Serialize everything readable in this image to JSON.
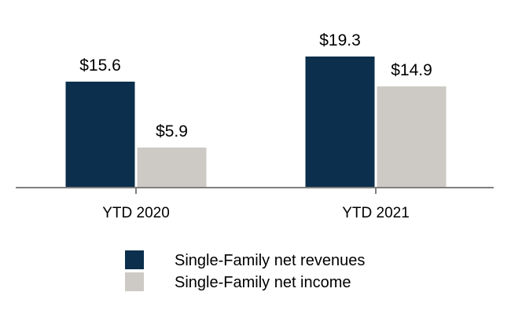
{
  "chart_data": {
    "type": "bar",
    "categories": [
      "YTD 2020",
      "YTD 2021"
    ],
    "series": [
      {
        "name": "Single-Family net revenues",
        "values": [
          15.6,
          19.3
        ],
        "labels": [
          "$15.6",
          "$19.3"
        ],
        "color": "#0b2f4c"
      },
      {
        "name": "Single-Family net income",
        "values": [
          5.9,
          14.9
        ],
        "labels": [
          "$5.9",
          "$14.9"
        ],
        "color": "#cdcac5"
      }
    ],
    "ylim": [
      0,
      19.3
    ],
    "grid": false,
    "legend_position": "bottom",
    "axis_color": "#7f7f7f"
  }
}
